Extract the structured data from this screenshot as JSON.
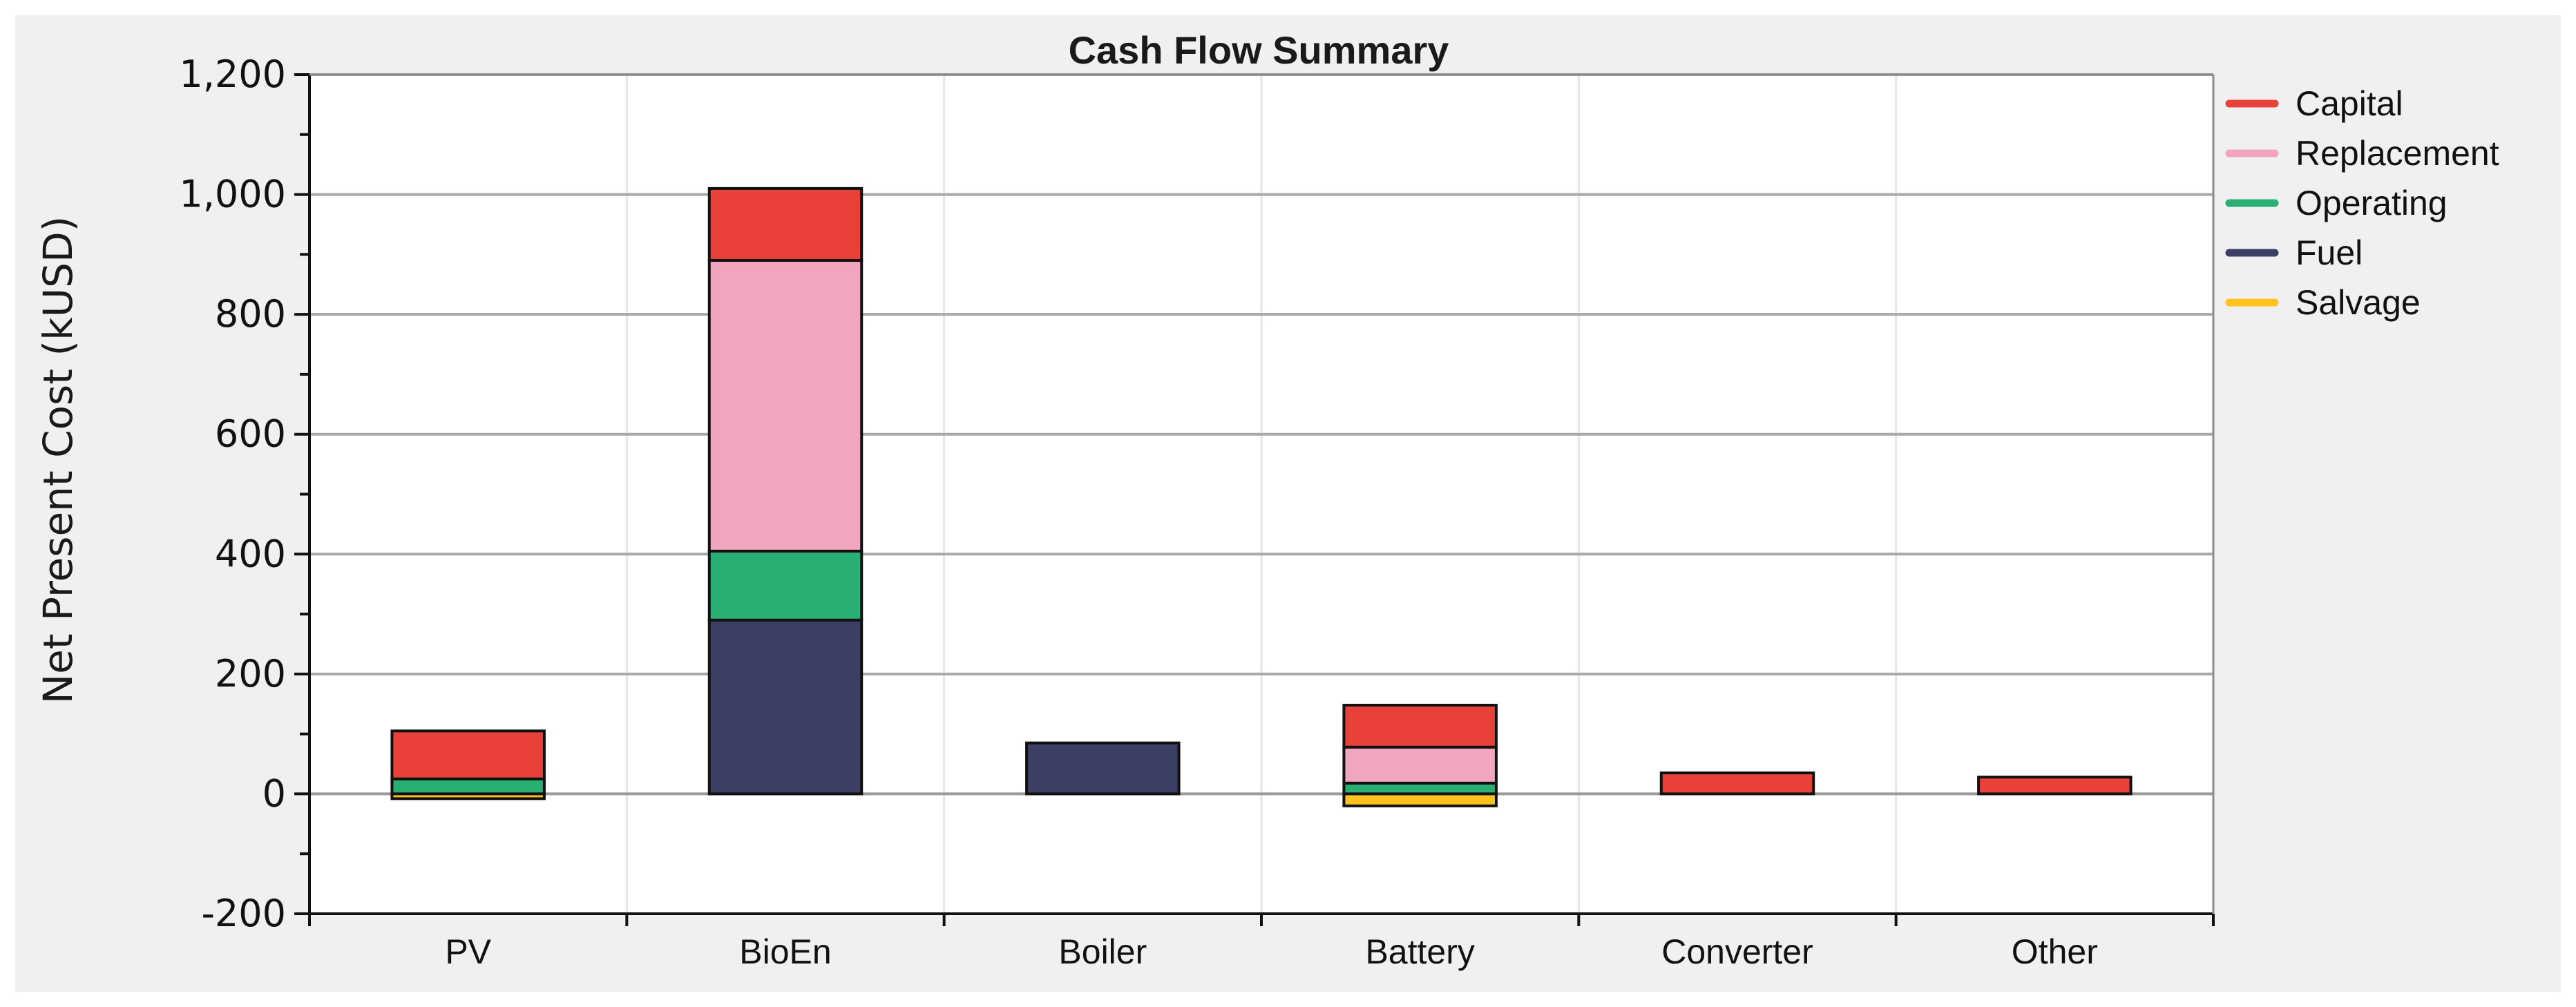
{
  "chart_data": {
    "type": "bar",
    "stacked": true,
    "title": "Cash Flow Summary",
    "xlabel": "",
    "ylabel": "Net Present Cost (kUSD)",
    "ylim": [
      -200,
      1200
    ],
    "yticks": [
      -200,
      0,
      200,
      400,
      600,
      800,
      1000,
      1200
    ],
    "ytick_labels": [
      "-200",
      "0",
      "200",
      "400",
      "600",
      "800",
      "1,000",
      "1,200"
    ],
    "grid": true,
    "legend_position": "right",
    "categories": [
      "PV",
      "BioEn",
      "Boiler",
      "Battery",
      "Converter",
      "Other"
    ],
    "series": [
      {
        "name": "Capital",
        "color": "#e8413a",
        "values": [
          80,
          120,
          0,
          70,
          35,
          28
        ]
      },
      {
        "name": "Replacement",
        "color": "#f2a5bf",
        "values": [
          0,
          485,
          0,
          60,
          0,
          0
        ]
      },
      {
        "name": "Operating",
        "color": "#2aaf72",
        "values": [
          25,
          115,
          0,
          18,
          0,
          0
        ]
      },
      {
        "name": "Fuel",
        "color": "#3a3f63",
        "values": [
          0,
          290,
          85,
          0,
          0,
          0
        ]
      },
      {
        "name": "Salvage",
        "color": "#ffc21f",
        "values": [
          -8,
          0,
          0,
          -20,
          0,
          0
        ]
      }
    ]
  }
}
